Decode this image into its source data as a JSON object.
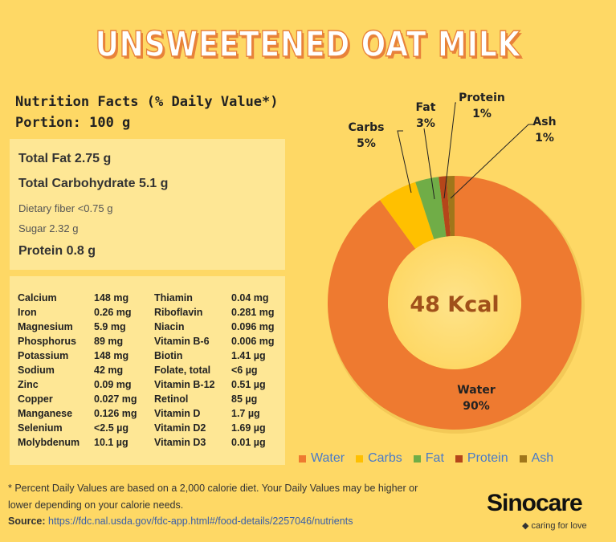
{
  "title": "UNSWEETENED OAT MILK",
  "facts": {
    "heading": "Nutrition Facts (% Daily Value*)",
    "portion": "Portion: 100 g"
  },
  "macros": [
    {
      "label": "Total Fat 2.75 g",
      "style": "big"
    },
    {
      "label": "Total Carbohydrate 5.1 g",
      "style": "big"
    },
    {
      "label": "Dietary fiber <0.75 g",
      "style": "small"
    },
    {
      "label": "Sugar 2.32 g",
      "style": "small"
    },
    {
      "label": "Protein 0.8 g",
      "style": "big"
    }
  ],
  "nutrients": [
    [
      "Calcium",
      "148 mg",
      "Thiamin",
      "0.04 mg"
    ],
    [
      "Iron",
      "0.26 mg",
      "Riboflavin",
      "0.281 mg"
    ],
    [
      "Magnesium",
      "5.9 mg",
      "Niacin",
      "0.096 mg"
    ],
    [
      "Phosphorus",
      "89 mg",
      "Vitamin B-6",
      "0.006 mg"
    ],
    [
      "Potassium",
      "148 mg",
      "Biotin",
      "1.41 µg"
    ],
    [
      "Sodium",
      "42 mg",
      "Folate, total",
      "<6 µg"
    ],
    [
      "Zinc",
      "0.09 mg",
      "Vitamin B-12",
      "0.51 µg"
    ],
    [
      "Copper",
      "0.027 mg",
      "Retinol",
      "85 µg"
    ],
    [
      "Manganese",
      "0.126 mg",
      "Vitamin D",
      "1.7 µg"
    ],
    [
      "Selenium",
      "<2.5 µg",
      "Vitamin D2",
      "1.69 µg"
    ],
    [
      "Molybdenum",
      "10.1 µg",
      "Vitamin D3",
      "0.01 µg"
    ]
  ],
  "footnote": "* Percent Daily Values are based on a 2,000 calorie diet. Your Daily Values may be higher or lower depending on your calorie needs.",
  "source": {
    "label": "Source:",
    "url": "https://fdc.nal.usda.gov/fdc-app.html#/food-details/2257046/nutrients"
  },
  "brand": {
    "name": "Sinocare",
    "tagline": "caring for love"
  },
  "chart_data": {
    "type": "pie",
    "donut": true,
    "center_label": "48 Kcal",
    "categories": [
      "Water",
      "Carbs",
      "Fat",
      "Protein",
      "Ash"
    ],
    "values": [
      90,
      5,
      3,
      1,
      1
    ],
    "labels": [
      "90%",
      "5%",
      "3%",
      "1%",
      "1%"
    ],
    "colors": [
      "#EE7A30",
      "#FFC000",
      "#70AD47",
      "#B5461A",
      "#A0761A"
    ],
    "legend": "bottom",
    "start": "top, clockwise"
  }
}
